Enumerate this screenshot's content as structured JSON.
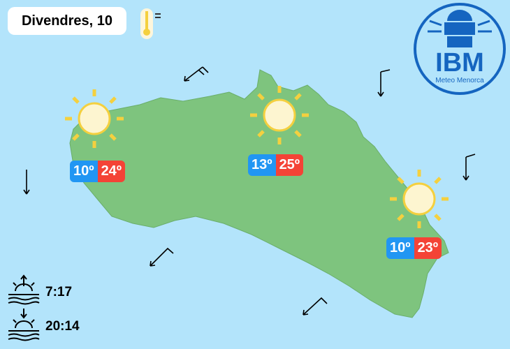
{
  "date_label": "Divendres, 10",
  "logo": {
    "text": "IBM",
    "subtitle": "Meteo Menorca",
    "color": "#1565c0"
  },
  "colors": {
    "sea": "#b3e4fb",
    "land": "#7ec47e",
    "min": "#2196f3",
    "max": "#f44336",
    "sun": "#f4d03f"
  },
  "forecasts": [
    {
      "location": "west",
      "icon": "sun-icon",
      "min": "10º",
      "max": "24º"
    },
    {
      "location": "north",
      "icon": "sun-icon",
      "min": "13º",
      "max": "25º"
    },
    {
      "location": "east",
      "icon": "sun-icon",
      "min": "10º",
      "max": "23º"
    }
  ],
  "sunrise": {
    "icon": "sunrise-icon",
    "time": "7:17"
  },
  "sunset": {
    "icon": "sunset-icon",
    "time": "20:14"
  },
  "thermometer_icon": "thermometer-equal-icon"
}
